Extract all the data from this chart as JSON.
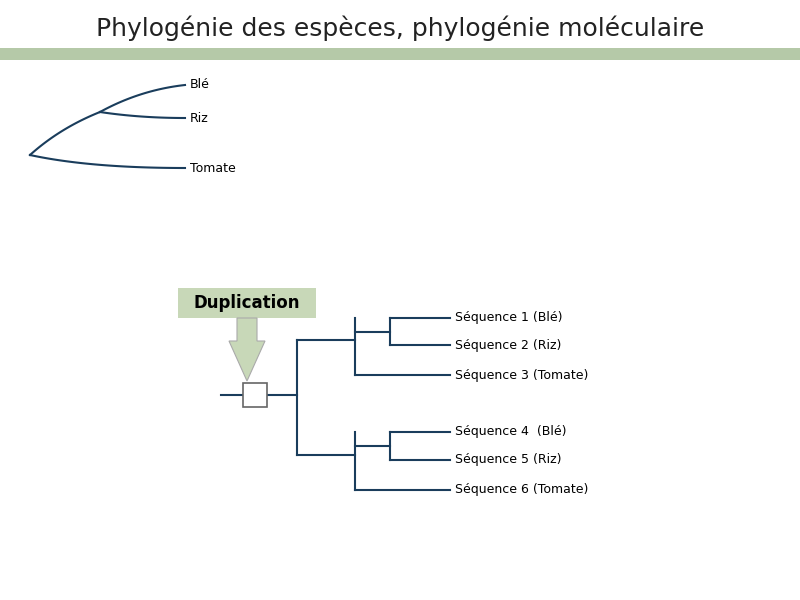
{
  "title": "Phylogénie des espèces, phylogénie moléculaire",
  "title_fontsize": 18,
  "title_color": "#222222",
  "header_bar_color": "#b5c9a8",
  "bg_color": "#ffffff",
  "tree_color": "#1a3d5c",
  "tree_lw": 1.5,
  "species_labels": [
    "Blé",
    "Riz",
    "Tomate"
  ],
  "seq_labels": [
    "Séquence 1 (Blé)",
    "Séquence 2 (Riz)",
    "Séquence 3 (Tomate)",
    "Séquence 4  (Blé)",
    "Séquence 5 (Riz)",
    "Séquence 6 (Tomate)"
  ],
  "duplication_label": "Duplication",
  "arrow_color": "#c8d8b8",
  "arrow_edge_color": "#aaaaaa",
  "box_color": "#ffffff",
  "box_edge_color": "#666666",
  "label_fontsize": 9,
  "dup_fontsize": 12
}
